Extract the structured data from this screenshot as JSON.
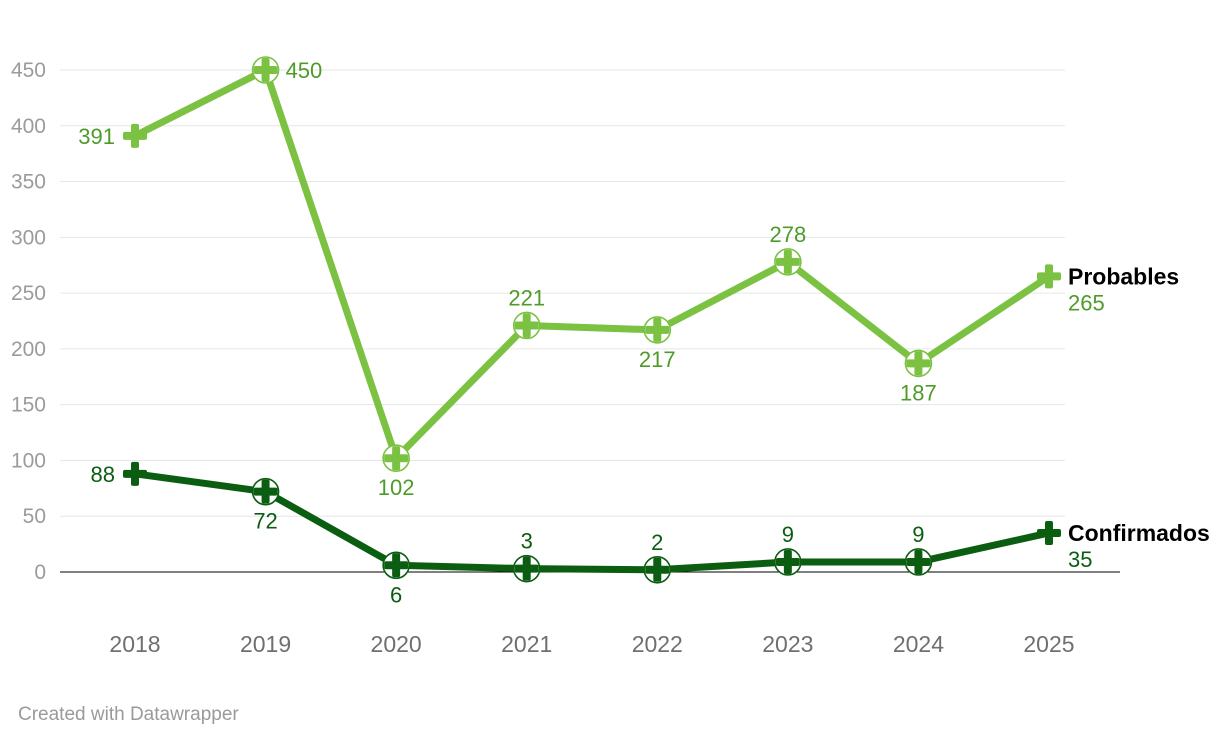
{
  "chart_data": {
    "type": "line",
    "title": "",
    "x": [
      "2018",
      "2019",
      "2020",
      "2021",
      "2022",
      "2023",
      "2024",
      "2025"
    ],
    "ylim": [
      0,
      450
    ],
    "ytick_step": 50,
    "yticks": [
      0,
      50,
      100,
      150,
      200,
      250,
      300,
      350,
      400,
      450
    ],
    "grid": true,
    "legend_position": "right-of-line-end",
    "series": [
      {
        "name": "Probables",
        "color": "#7bc142",
        "label_color": "#4e9b2a",
        "values": [
          391,
          450,
          102,
          221,
          217,
          278,
          187,
          265
        ],
        "label_positions": [
          "left",
          "right",
          "below",
          "above",
          "below",
          "above",
          "below",
          "end"
        ]
      },
      {
        "name": "Confirmados",
        "color": "#0b5e11",
        "label_color": "#0b5e11",
        "values": [
          88,
          72,
          6,
          3,
          2,
          9,
          9,
          35
        ],
        "label_positions": [
          "left",
          "below",
          "below",
          "above",
          "above",
          "above",
          "above",
          "end"
        ]
      }
    ]
  },
  "colors": {
    "grid": "#e6e6e6",
    "zero_line": "#000000",
    "axis_text": "#9b9b9b",
    "year_text": "#6f6f6f",
    "footer_text": "#9a9a9a",
    "end_label_name": "#000000"
  },
  "footer": {
    "attribution": "Created with Datawrapper"
  }
}
